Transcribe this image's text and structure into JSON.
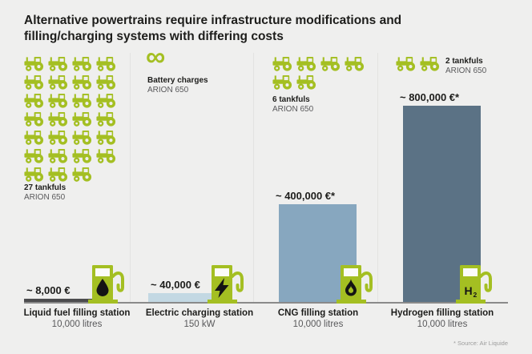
{
  "title": {
    "line1": "Alternative powertrains require infrastructure modifications and",
    "line2": "filling/charging systems with differing costs"
  },
  "footnote": "* Source: Air Liquide",
  "colors": {
    "background": "#efefee",
    "brand_green": "#a4bf22",
    "title_text": "#1d1d1b",
    "secondary_text": "#59595b",
    "baseline": "#8a8a8a",
    "footnote_text": "#9c9c9c"
  },
  "chart_data": {
    "type": "bar",
    "title": "Alternative powertrains require infrastructure modifications and filling/charging systems with differing costs",
    "categories": [
      "Liquid fuel filling station",
      "Electric charging station",
      "CNG filling station",
      "Hydrogen filling station"
    ],
    "values": [
      8000,
      40000,
      400000,
      800000
    ],
    "value_labels": [
      "~ 8,000 €",
      "~ 40,000 €",
      "~ 400,000 €*",
      "~ 800,000 €*"
    ],
    "capacity_labels": [
      "10,000 litres",
      "150 kW",
      "10,000 litres",
      "10,000 litres"
    ],
    "equivalence_labels": [
      "27 tankfuls ARION 650",
      "Battery charges ARION 650",
      "6 tankfuls ARION 650",
      "2 tankfuls ARION 650"
    ],
    "bar_colors": [
      "#4c4c4e",
      "#c3d8e3",
      "#87a7bf",
      "#5b7285"
    ],
    "ylim": [
      0,
      800000
    ],
    "grid": false,
    "legend": false,
    "unit": "EUR",
    "source": "* Source: Air Liquide"
  },
  "columns": [
    {
      "station": "Liquid fuel filling station",
      "capacity": "10,000 litres",
      "value_label": "~ 8,000 €",
      "value_eur": 8000,
      "tankfuls_label": "27 tankfuls",
      "tankfuls_sub": "ARION 650",
      "tractor_count": 27,
      "bar_color": "#4c4c4e",
      "pump_symbol": "oil-drop"
    },
    {
      "station": "Electric charging station",
      "capacity": "150 kW",
      "value_label": "~ 40,000 €",
      "value_eur": 40000,
      "tankfuls_label": "Battery charges",
      "tankfuls_sub": "ARION 650",
      "tractor_count": 0,
      "infinity_symbol": "∞",
      "bar_color": "#c3d8e3",
      "pump_symbol": "lightning-bolt"
    },
    {
      "station": "CNG filling station",
      "capacity": "10,000 litres",
      "value_label": "~ 400,000 €*",
      "value_eur": 400000,
      "tankfuls_label": "6 tankfuls",
      "tankfuls_sub": "ARION 650",
      "tractor_count": 6,
      "bar_color": "#87a7bf",
      "pump_symbol": "flame"
    },
    {
      "station": "Hydrogen filling station",
      "capacity": "10,000 litres",
      "value_label": "~ 800,000 €*",
      "value_eur": 800000,
      "tankfuls_label": "2 tankfuls",
      "tankfuls_sub": "ARION 650",
      "tractor_count": 2,
      "bar_color": "#5b7285",
      "pump_symbol": "hydrogen",
      "pump_symbol_text": "H",
      "pump_symbol_sub": "2"
    }
  ]
}
